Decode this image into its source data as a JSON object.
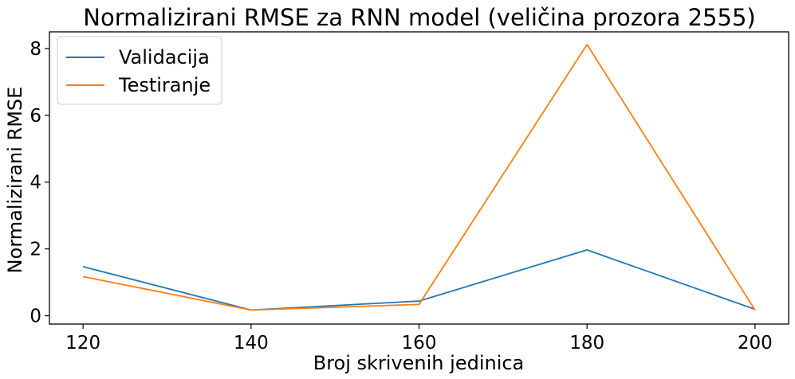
{
  "chart_data": {
    "type": "line",
    "title": "Normalizirani RMSE za RNN model (veličina prozora 2555)",
    "xlabel": "Broj skrivenih jedinica",
    "ylabel": "Normalizirani RMSE",
    "x": [
      120,
      140,
      160,
      180,
      200
    ],
    "x_ticks": [
      "120",
      "140",
      "160",
      "180",
      "200"
    ],
    "y_ticks": [
      "0",
      "2",
      "4",
      "6",
      "8"
    ],
    "xlim": [
      116,
      204
    ],
    "ylim": [
      -0.25,
      8.5
    ],
    "grid": false,
    "legend_position": "top-left",
    "series": [
      {
        "name": "Validacija",
        "color": "#1f77b4",
        "values": [
          1.47,
          0.17,
          0.44,
          1.97,
          0.19
        ]
      },
      {
        "name": "Testiranje",
        "color": "#ff7f0e",
        "values": [
          1.17,
          0.17,
          0.34,
          8.12,
          0.17
        ]
      }
    ]
  }
}
